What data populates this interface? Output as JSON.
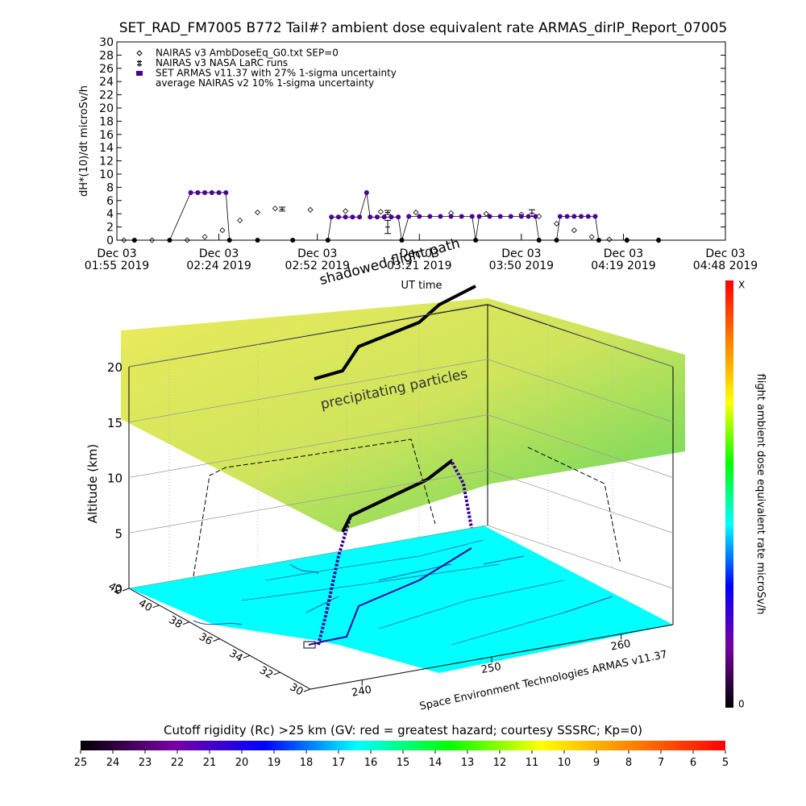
{
  "chart_data": [
    {
      "type": "line",
      "title": "SET_RAD_FM7005  B772 Tail#? ambient dose equivalent rate ARMAS_dirIP_Report_07005",
      "ylabel": "dH*(10)/dt microSv/h",
      "xlabel": "UT time",
      "ylim": [
        0,
        30
      ],
      "yticks": [
        0,
        2,
        4,
        6,
        8,
        10,
        12,
        14,
        16,
        18,
        20,
        22,
        24,
        26,
        28,
        30
      ],
      "xlim": [
        "2019-12-03T01:55",
        "2019-12-03T04:48"
      ],
      "xticks": [
        {
          "value": "2019-12-03T01:55",
          "label": [
            "Dec 03",
            "01:55 2019"
          ]
        },
        {
          "value": "2019-12-03T02:24",
          "label": [
            "Dec 03",
            "02:24 2019"
          ]
        },
        {
          "value": "2019-12-03T02:52",
          "label": [
            "Dec 03",
            "02:52 2019"
          ]
        },
        {
          "value": "2019-12-03T03:21",
          "label": [
            "Dec 03",
            "03:21 2019"
          ]
        },
        {
          "value": "2019-12-03T03:50",
          "label": [
            "Dec 03",
            "03:50 2019"
          ]
        },
        {
          "value": "2019-12-03T04:19",
          "label": [
            "Dec 03",
            "04:19 2019"
          ]
        },
        {
          "value": "2019-12-03T04:48",
          "label": [
            "Dec 03",
            "04:48 2019"
          ]
        }
      ],
      "series": [
        {
          "name": "NAIRAS v3 AmbDoseEq_G0.txt SEP=0",
          "color": "#000000",
          "marker": "diamond",
          "x": [
            "2019-12-03T01:57",
            "2019-12-03T02:05",
            "2019-12-03T02:15",
            "2019-12-03T02:20",
            "2019-12-03T02:25",
            "2019-12-03T02:30",
            "2019-12-03T02:35",
            "2019-12-03T02:40",
            "2019-12-03T02:50",
            "2019-12-03T03:00",
            "2019-12-03T03:10",
            "2019-12-03T03:20",
            "2019-12-03T03:30",
            "2019-12-03T03:40",
            "2019-12-03T03:50",
            "2019-12-03T03:55",
            "2019-12-03T04:00",
            "2019-12-03T04:05",
            "2019-12-03T04:10",
            "2019-12-03T04:15",
            "2019-12-03T04:20",
            "2019-12-03T04:29"
          ],
          "values": [
            0,
            0,
            0,
            0.5,
            1.5,
            3,
            4.2,
            4.8,
            4.6,
            4.4,
            4.3,
            4.2,
            4.1,
            4.0,
            3.9,
            3.6,
            2.5,
            1.5,
            0.5,
            0.1,
            0,
            0
          ]
        },
        {
          "name": "NAIRAS v3 NASA LaRC runs",
          "color": "#000000",
          "marker": "errorbar",
          "x": [
            "2019-12-03T02:42",
            "2019-12-03T03:12",
            "2019-12-03T03:12",
            "2019-12-03T03:53"
          ],
          "values": [
            4.7,
            4.2,
            2.0,
            4.1
          ],
          "errors": [
            0.3,
            0.3,
            1.0,
            0.5
          ]
        },
        {
          "name": "SET ARMAS v11.37 with 27% 1-sigma uncertainty",
          "color": "#4b0096",
          "marker": "circle",
          "x": [
            "2019-12-03T02:00",
            "2019-12-03T02:10",
            "2019-12-03T02:16",
            "2019-12-03T02:18",
            "2019-12-03T02:20",
            "2019-12-03T02:22",
            "2019-12-03T02:24",
            "2019-12-03T02:26",
            "2019-12-03T02:27",
            "2019-12-03T02:35",
            "2019-12-03T02:45",
            "2019-12-03T02:55",
            "2019-12-03T02:56",
            "2019-12-03T02:58",
            "2019-12-03T03:00",
            "2019-12-03T03:02",
            "2019-12-03T03:04",
            "2019-12-03T03:06",
            "2019-12-03T03:07",
            "2019-12-03T03:09",
            "2019-12-03T03:11",
            "2019-12-03T03:13",
            "2019-12-03T03:15",
            "2019-12-03T03:16",
            "2019-12-03T03:18",
            "2019-12-03T03:21",
            "2019-12-03T03:24",
            "2019-12-03T03:27",
            "2019-12-03T03:30",
            "2019-12-03T03:33",
            "2019-12-03T03:36",
            "2019-12-03T03:37",
            "2019-12-03T03:38",
            "2019-12-03T03:41",
            "2019-12-03T03:44",
            "2019-12-03T03:47",
            "2019-12-03T03:50",
            "2019-12-03T03:52",
            "2019-12-03T03:54",
            "2019-12-03T03:55",
            "2019-12-03T04:00",
            "2019-12-03T04:01",
            "2019-12-03T04:03",
            "2019-12-03T04:05",
            "2019-12-03T04:07",
            "2019-12-03T04:09",
            "2019-12-03T04:11",
            "2019-12-03T04:12",
            "2019-12-03T04:20",
            "2019-12-03T04:29"
          ],
          "values": [
            0,
            0,
            7.2,
            7.2,
            7.2,
            7.2,
            7.2,
            7.2,
            0,
            0,
            0,
            0,
            3.5,
            3.5,
            3.5,
            3.5,
            3.5,
            7.2,
            3.5,
            3.5,
            3.5,
            3.5,
            3.5,
            0,
            3.6,
            3.6,
            3.6,
            3.6,
            3.6,
            3.6,
            3.6,
            0,
            3.6,
            3.6,
            3.6,
            3.6,
            3.6,
            3.6,
            3.6,
            0,
            0,
            3.6,
            3.6,
            3.6,
            3.6,
            3.6,
            3.6,
            0,
            0,
            0
          ]
        }
      ],
      "legend_note": "average NAIRAS v2 10% 1-sigma uncertainty",
      "legend": "upper left"
    },
    {
      "type": "3d",
      "zlabel": "Altitude (km)",
      "zlim": [
        0,
        20
      ],
      "zticks": [
        0,
        5,
        10,
        15,
        20
      ],
      "ylim": [
        30,
        42
      ],
      "yticks": [
        30,
        32,
        34,
        36,
        38,
        40,
        42
      ],
      "xlim": [
        236,
        264
      ],
      "xticks": [
        240,
        250,
        260
      ],
      "annotations": [
        "shadowed flight path",
        "precipitating particles"
      ],
      "credit": "Space Environment Technologies ARMAS v11.37"
    },
    {
      "type": "colorbar",
      "orientation": "vertical",
      "label": "flight ambient dose equivalent rate microSv/h",
      "low": 0,
      "high_label": "X",
      "colors": [
        "#000000",
        "#7800a0",
        "#0000ff",
        "#00ffff",
        "#00ff00",
        "#ffff00",
        "#ff8000",
        "#ff0000"
      ]
    },
    {
      "type": "colorbar",
      "orientation": "horizontal",
      "title": "Cutoff rigidity (Rc) >25 km (GV: red = greatest hazard; courtesy SSSRC; Kp=0)",
      "xlim": [
        25,
        5
      ],
      "xticks": [
        25,
        24,
        23,
        22,
        21,
        20,
        19,
        18,
        17,
        16,
        15,
        14,
        13,
        12,
        11,
        10,
        9,
        8,
        7,
        6,
        5
      ],
      "colors": [
        "#000000",
        "#7800a0",
        "#0000ff",
        "#00ffff",
        "#00ff00",
        "#ffff00",
        "#ff8000",
        "#ff0000"
      ]
    }
  ]
}
